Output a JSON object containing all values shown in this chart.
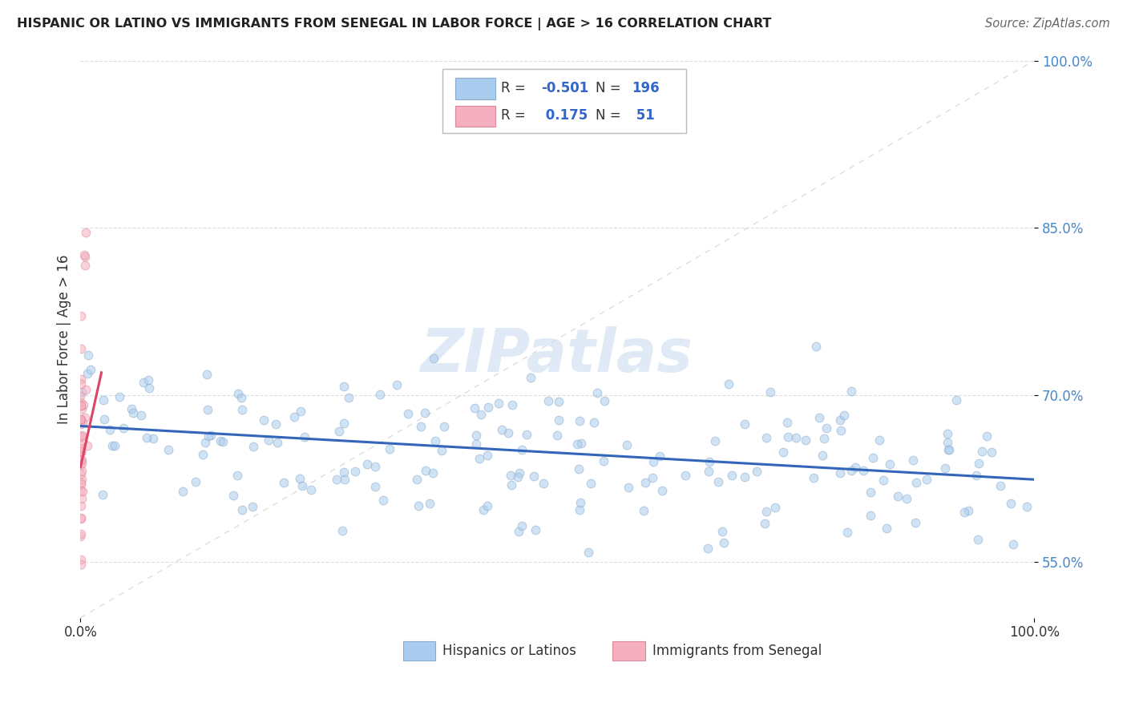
{
  "title": "HISPANIC OR LATINO VS IMMIGRANTS FROM SENEGAL IN LABOR FORCE | AGE > 16 CORRELATION CHART",
  "source": "Source: ZipAtlas.com",
  "ylabel": "In Labor Force | Age > 16",
  "legend_entries": [
    {
      "label": "Hispanics or Latinos",
      "face_color": "#aaccee",
      "edge_color": "#88aacc",
      "R": -0.501,
      "N": 196
    },
    {
      "label": "Immigrants from Senegal",
      "face_color": "#f4b0c0",
      "edge_color": "#dd8898",
      "R": 0.175,
      "N": 51
    }
  ],
  "blue_line": {
    "x0": 0.0,
    "x1": 1.0,
    "y0": 0.672,
    "y1": 0.624
  },
  "pink_line": {
    "x0": 0.0,
    "x1": 0.022,
    "y0": 0.635,
    "y1": 0.72
  },
  "diag_line_color": "#dddddd",
  "xlim": [
    0.0,
    1.0
  ],
  "ylim": [
    0.5,
    1.0
  ],
  "yticks": [
    0.55,
    0.7,
    0.85,
    1.0
  ],
  "ytick_labels": [
    "55.0%",
    "70.0%",
    "85.0%",
    "100.0%"
  ],
  "xtick_labels": [
    "0.0%",
    "100.0%"
  ],
  "xticks": [
    0.0,
    1.0
  ],
  "watermark": "ZIPatlas",
  "bg_color": "#ffffff",
  "scatter_alpha": 0.55,
  "scatter_size": 60,
  "blue_line_color": "#3366bb",
  "pink_line_color": "#dd4466",
  "grid_color": "#dddddd",
  "ytick_color": "#4488cc",
  "legend_box": {
    "R_color": "#3366cc",
    "label_color": "#333333"
  }
}
